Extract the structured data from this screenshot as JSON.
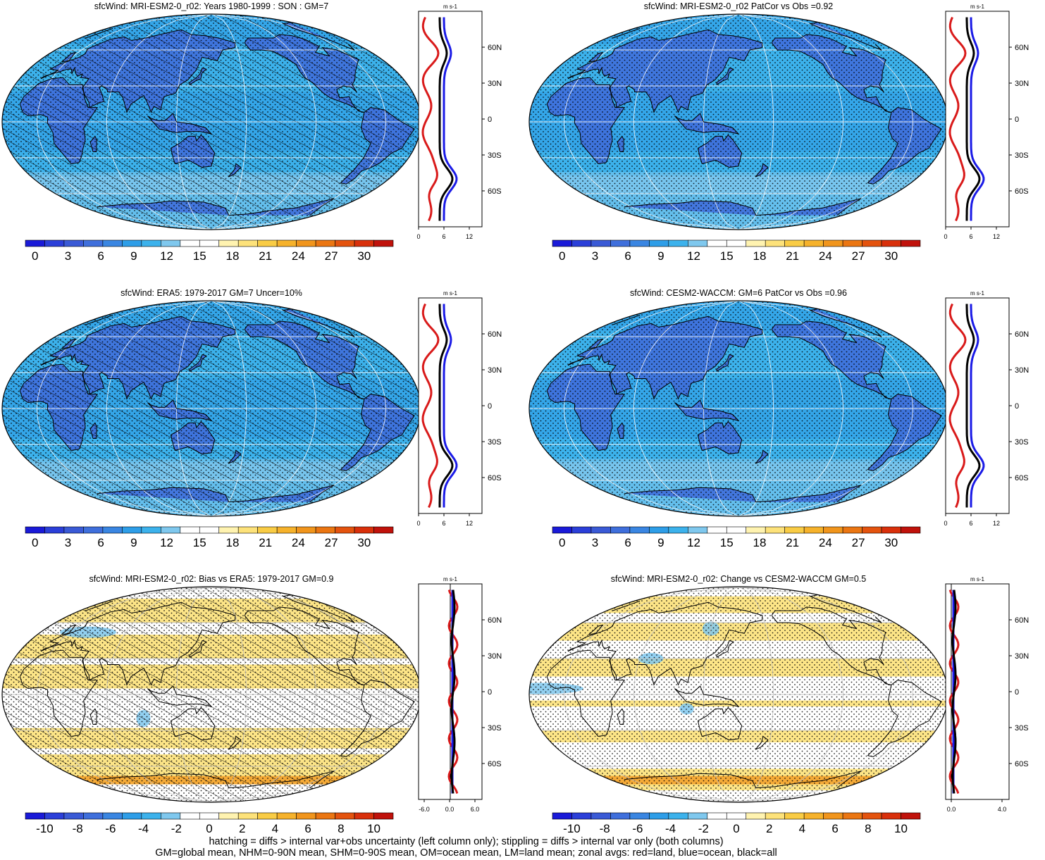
{
  "panels": [
    {
      "id": "p1",
      "title": "sfcWind: MRI-ESM2-0_r02: Years 1980-1999 : SON : GM=7",
      "kind": "clim",
      "hatch": true,
      "cbar_labels": [
        "0",
        "3",
        "6",
        "9",
        "12",
        "15",
        "18",
        "21",
        "24",
        "27",
        "30"
      ],
      "profile_unit": "m s-1",
      "profile_xticks": [
        "0",
        "6",
        "12"
      ],
      "profile_yticks": [
        "60N",
        "30N",
        "0",
        "30S",
        "60S"
      ]
    },
    {
      "id": "p2",
      "title": "sfcWind: MRI-ESM2-0_r02 PatCor vs Obs =0.92",
      "kind": "clim",
      "hatch": false,
      "cbar_labels": [
        "0",
        "3",
        "6",
        "9",
        "12",
        "15",
        "18",
        "21",
        "24",
        "27",
        "30"
      ],
      "profile_unit": "m s-1",
      "profile_xticks": [
        "0",
        "6",
        "12"
      ],
      "profile_yticks": [
        "60N",
        "30N",
        "0",
        "30S",
        "60S"
      ]
    },
    {
      "id": "p3",
      "title": "sfcWind: ERA5: 1979-2017 GM=7 Uncer=10%",
      "kind": "clim",
      "hatch": true,
      "cbar_labels": [
        "0",
        "3",
        "6",
        "9",
        "12",
        "15",
        "18",
        "21",
        "24",
        "27",
        "30"
      ],
      "profile_unit": "m s-1",
      "profile_xticks": [
        "0",
        "6",
        "12"
      ],
      "profile_yticks": [
        "60N",
        "30N",
        "0",
        "30S",
        "60S"
      ]
    },
    {
      "id": "p4",
      "title": "sfcWind: CESM2-WACCM: GM=6 PatCor vs Obs =0.96",
      "kind": "clim",
      "hatch": false,
      "cbar_labels": [
        "0",
        "3",
        "6",
        "9",
        "12",
        "15",
        "18",
        "21",
        "24",
        "27",
        "30"
      ],
      "profile_unit": "m s-1",
      "profile_xticks": [
        "0",
        "6",
        "12"
      ],
      "profile_yticks": [
        "60N",
        "30N",
        "0",
        "30S",
        "60S"
      ]
    },
    {
      "id": "p5",
      "title": "sfcWind: MRI-ESM2-0_r02: Bias vs ERA5: 1979-2017  GM=0.9",
      "kind": "diff",
      "hatch": true,
      "cbar_labels": [
        "-10",
        "-8",
        "-6",
        "-4",
        "-2",
        "0",
        "2",
        "4",
        "6",
        "8",
        "10"
      ],
      "profile_unit": "m s-1",
      "profile_xticks": [
        "-6.0",
        "0.0",
        "6.0"
      ],
      "profile_yticks": [
        "60N",
        "30N",
        "0",
        "30S",
        "60S"
      ]
    },
    {
      "id": "p6",
      "title": "sfcWind: MRI-ESM2-0_r02: Change vs CESM2-WACCM GM=0.5",
      "kind": "diff",
      "hatch": false,
      "cbar_labels": [
        "-10",
        "-8",
        "-6",
        "-4",
        "-2",
        "0",
        "2",
        "4",
        "6",
        "8",
        "10"
      ],
      "profile_unit": "m s-1",
      "profile_xticks": [
        "0.0",
        "4.0"
      ],
      "profile_yticks": [
        "60N",
        "30N",
        "0",
        "30S",
        "60S"
      ]
    }
  ],
  "colors": {
    "scale": [
      "#1a1ad8",
      "#2b3fd9",
      "#3a5ad6",
      "#3f6fdc",
      "#3a86e2",
      "#2e9ee8",
      "#3cb2ec",
      "#7fc8ee",
      "#ffffff",
      "#ffffff",
      "#fff3b0",
      "#fde27a",
      "#f9cc45",
      "#f6b22b",
      "#f1951c",
      "#eb7612",
      "#e4530e",
      "#d9300b",
      "#c0120b"
    ],
    "land": "#d91a1a",
    "ocean": "#1a1ae6",
    "all": "#000000"
  },
  "footer": {
    "line1": "hatching = diffs > internal var+obs uncertainty (left column only); stippling = diffs > internal var only (both columns)",
    "line2": "GM=global mean, NHM=0-90N mean, SHM=0-90S mean, OM=ocean mean, LM=land mean; zonal avgs: red=land, blue=ocean, black=all"
  }
}
